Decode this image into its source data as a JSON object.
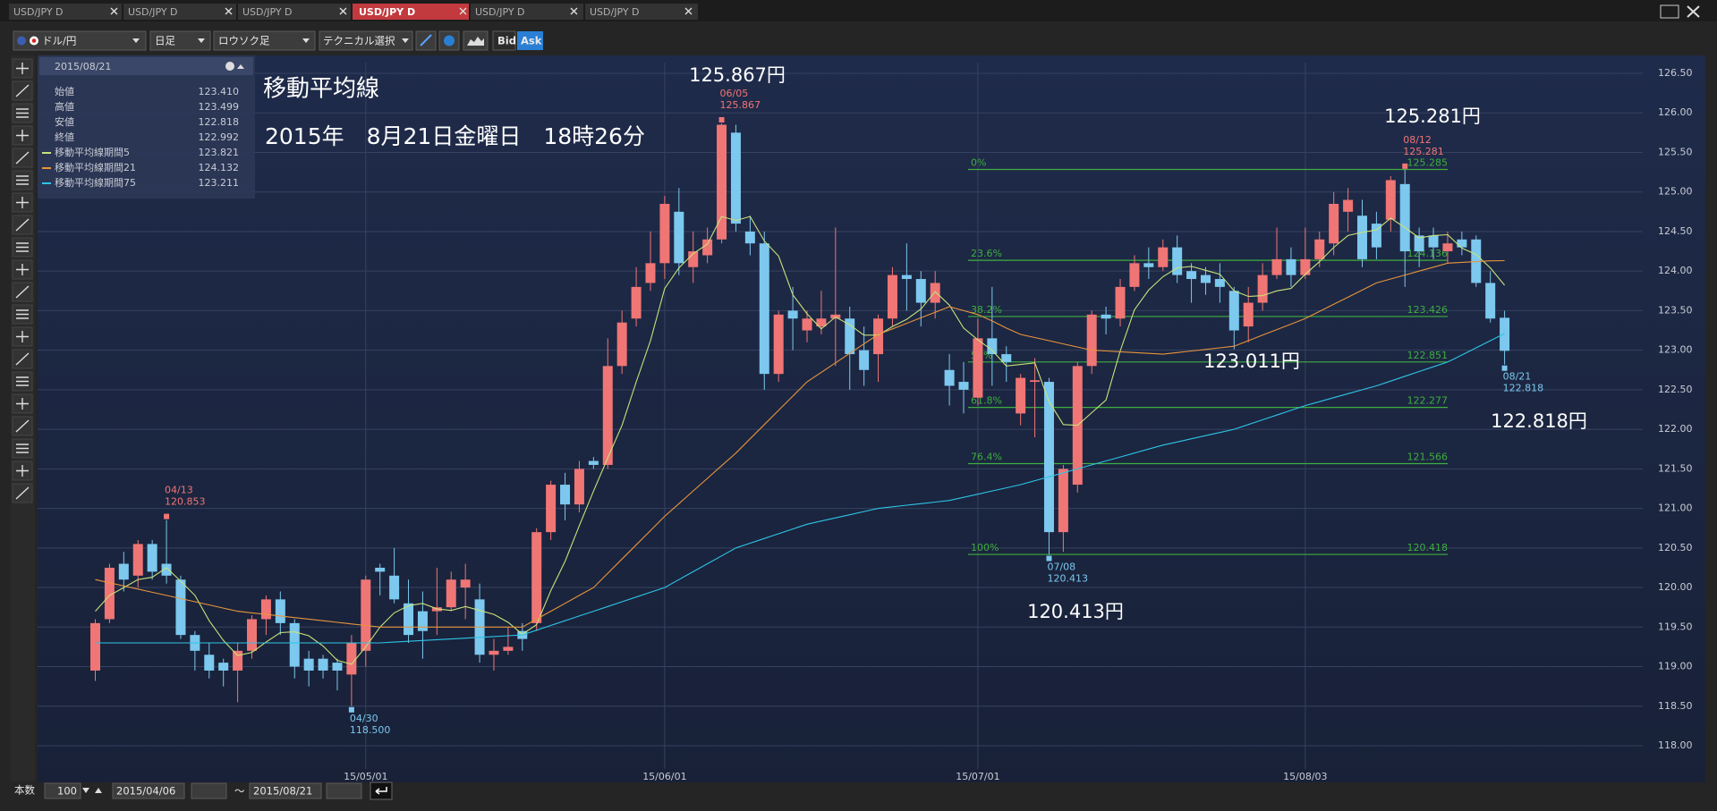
{
  "tabs": [
    "USD/JPY D",
    "USD/JPY D",
    "USD/JPY D",
    "USD/JPY D",
    "USD/JPY D",
    "USD/JPY D"
  ],
  "toolbar": {
    "pair": "ドル/円",
    "period": "日足",
    "chart_type": "ロウソク足",
    "technical": "テクニカル選択",
    "bid": "Bid",
    "ask": "Ask"
  },
  "info_panel": {
    "date": "2015/08/21",
    "ohlc_labels": [
      "始値",
      "高値",
      "安値",
      "終値"
    ],
    "ohlc_values": [
      "123.410",
      "123.499",
      "122.818",
      "122.992"
    ],
    "ma_values": [
      "123.821",
      "124.132",
      "123.211"
    ]
  },
  "annotations": {
    "title": "移動平均線",
    "datetime": "2015年　8月21日金曜日　18時26分",
    "price_labels": [
      "125.867円",
      "125.281円",
      "123.011円",
      "120.413円",
      "122.818円"
    ]
  },
  "bottom_bar": {
    "count_label": "本数",
    "count": "100",
    "from": "2015/04/06",
    "tilde": "〜",
    "to": "2015/08/21"
  },
  "chart_data": {
    "type": "candlestick",
    "categories": [
      null,
      null,
      null,
      null,
      null,
      null,
      null,
      null,
      null,
      null,
      null,
      null,
      null,
      null,
      null,
      null,
      null,
      null,
      null,
      "15/05/01",
      null,
      null,
      null,
      null,
      null,
      null,
      null,
      null,
      null,
      null,
      null,
      null,
      null,
      null,
      null,
      null,
      null,
      null,
      null,
      null,
      "15/06/01",
      null,
      null,
      null,
      null,
      null,
      null,
      null,
      null,
      null,
      null,
      null,
      null,
      null,
      null,
      null,
      null,
      null,
      null,
      null,
      null,
      null,
      "15/07/01",
      null,
      null,
      null,
      null,
      null,
      null,
      null,
      null,
      null,
      null,
      null,
      null,
      null,
      null,
      null,
      null,
      null,
      null,
      null,
      null,
      null,
      null,
      "15/08/03",
      null,
      null,
      null,
      null,
      null,
      null,
      null,
      null,
      null,
      null,
      null,
      null,
      null,
      null
    ],
    "open": [
      118.95,
      119.6,
      120.3,
      120.15,
      120.55,
      120.3,
      120.1,
      119.4,
      119.15,
      119.05,
      118.95,
      119.2,
      119.6,
      119.85,
      119.55,
      119.1,
      119.1,
      119.05,
      118.9,
      119.2,
      120.25,
      120.15,
      119.8,
      119.7,
      119.7,
      119.75,
      120.0,
      119.85,
      119.15,
      119.2,
      119.45,
      119.55,
      120.7,
      121.3,
      121.05,
      121.6,
      121.55,
      122.8,
      123.4,
      123.85,
      124.1,
      124.75,
      124.05,
      124.2,
      124.4,
      125.75,
      124.5,
      124.35,
      122.7,
      123.5,
      123.25,
      123.3,
      123.4,
      123.4,
      123.0,
      122.95,
      123.4,
      123.95,
      123.9,
      123.6,
      122.75,
      122.6,
      122.4,
      123.15,
      122.95,
      122.2,
      122.6,
      122.6,
      120.7,
      121.3,
      122.8,
      123.45,
      123.4,
      123.8,
      124.1,
      124.05,
      124.3,
      124.0,
      123.95,
      123.9,
      123.75,
      123.3,
      123.6,
      123.95,
      124.15,
      123.95,
      124.15,
      124.35,
      124.75,
      124.7,
      124.6,
      124.65,
      125.1,
      124.45,
      124.45,
      124.25,
      124.4,
      124.4,
      123.85,
      123.41
    ],
    "high": [
      119.6,
      120.3,
      120.45,
      120.6,
      120.6,
      120.853,
      120.15,
      119.45,
      119.3,
      119.1,
      119.3,
      119.65,
      119.9,
      119.95,
      119.6,
      119.2,
      119.15,
      119.1,
      119.4,
      120.15,
      120.3,
      120.5,
      120.1,
      119.95,
      120.25,
      120.2,
      120.3,
      120.05,
      119.35,
      119.5,
      119.55,
      120.75,
      121.35,
      121.45,
      121.6,
      121.65,
      123.15,
      123.5,
      124.05,
      124.5,
      124.95,
      125.05,
      124.5,
      124.55,
      125.867,
      125.85,
      124.7,
      124.5,
      123.5,
      123.8,
      123.5,
      123.75,
      124.55,
      123.55,
      123.3,
      123.45,
      124.05,
      124.35,
      124.0,
      124.0,
      122.95,
      122.85,
      123.4,
      123.8,
      123.05,
      122.7,
      122.9,
      122.65,
      121.55,
      122.85,
      123.5,
      123.55,
      123.9,
      124.2,
      124.3,
      124.4,
      124.45,
      124.1,
      124.05,
      124.1,
      123.8,
      123.8,
      124.1,
      124.55,
      124.3,
      124.55,
      124.5,
      125.0,
      125.05,
      124.9,
      124.75,
      125.2,
      125.281,
      124.55,
      124.55,
      124.5,
      124.5,
      124.45,
      124.0,
      123.499
    ],
    "low": [
      118.82,
      119.55,
      119.95,
      120.0,
      120.1,
      120.05,
      119.35,
      118.95,
      118.85,
      118.75,
      118.55,
      119.1,
      119.4,
      119.4,
      118.85,
      118.75,
      118.85,
      118.7,
      118.5,
      119.0,
      119.9,
      119.8,
      119.3,
      119.1,
      119.4,
      119.7,
      119.6,
      119.05,
      118.95,
      119.15,
      119.2,
      119.45,
      120.6,
      120.85,
      120.95,
      121.5,
      121.5,
      122.7,
      123.3,
      123.75,
      123.9,
      123.95,
      123.85,
      124.1,
      124.35,
      124.5,
      124.2,
      122.5,
      122.6,
      123.0,
      123.1,
      123.2,
      122.8,
      122.5,
      122.55,
      122.6,
      123.3,
      123.5,
      123.3,
      123.4,
      122.3,
      122.2,
      122.3,
      122.55,
      122.6,
      122.05,
      121.9,
      120.413,
      120.45,
      121.2,
      122.7,
      123.2,
      123.3,
      123.75,
      123.9,
      124.0,
      123.85,
      123.6,
      123.7,
      123.6,
      123.011,
      123.1,
      123.5,
      123.9,
      123.8,
      123.9,
      124.05,
      124.2,
      124.5,
      124.05,
      124.15,
      124.5,
      123.8,
      124.05,
      124.15,
      124.1,
      124.2,
      123.8,
      123.35,
      122.818
    ],
    "close": [
      119.55,
      120.25,
      120.1,
      120.55,
      120.2,
      120.15,
      119.4,
      119.2,
      118.95,
      118.95,
      119.2,
      119.6,
      119.85,
      119.55,
      119.0,
      118.95,
      118.95,
      118.95,
      119.3,
      120.1,
      120.2,
      119.85,
      119.4,
      119.45,
      119.75,
      120.1,
      120.1,
      119.15,
      119.2,
      119.25,
      119.35,
      120.7,
      121.3,
      121.05,
      121.5,
      121.55,
      122.8,
      123.35,
      123.8,
      124.1,
      124.85,
      124.1,
      124.25,
      124.4,
      125.85,
      124.6,
      124.35,
      122.7,
      123.45,
      123.4,
      123.4,
      123.4,
      123.45,
      122.95,
      122.75,
      123.4,
      123.95,
      123.9,
      123.6,
      123.85,
      122.55,
      122.5,
      123.15,
      122.95,
      122.85,
      122.65,
      122.62,
      120.7,
      121.5,
      122.8,
      123.45,
      123.4,
      123.8,
      124.1,
      124.05,
      124.3,
      123.95,
      123.9,
      123.85,
      123.8,
      123.25,
      123.6,
      123.95,
      124.15,
      123.95,
      124.15,
      124.4,
      124.85,
      124.9,
      124.15,
      124.3,
      125.15,
      124.25,
      124.25,
      124.3,
      124.35,
      124.3,
      123.85,
      123.4,
      122.992
    ],
    "up_color": "#f07575",
    "down_color": "#7cc8ee",
    "series": [
      {
        "name": "移動平均線期間5",
        "color": "#c9e27a",
        "values": [
          119.7,
          119.9,
          120.0,
          120.1,
          120.13,
          120.25,
          120.08,
          119.9,
          119.58,
          119.33,
          119.14,
          119.18,
          119.31,
          119.43,
          119.44,
          119.39,
          119.26,
          119.08,
          119.03,
          119.25,
          119.5,
          119.68,
          119.77,
          119.8,
          119.73,
          119.71,
          119.76,
          119.71,
          119.66,
          119.56,
          119.41,
          119.53,
          119.96,
          120.33,
          120.78,
          121.22,
          121.64,
          122.05,
          122.6,
          123.12,
          123.78,
          124.04,
          124.22,
          124.34,
          124.69,
          124.64,
          124.69,
          124.38,
          124.19,
          123.7,
          123.46,
          123.27,
          123.42,
          123.32,
          123.19,
          123.19,
          123.3,
          123.39,
          123.52,
          123.74,
          123.57,
          123.28,
          123.13,
          123.0,
          122.8,
          122.82,
          122.84,
          122.35,
          122.06,
          122.05,
          122.21,
          122.37,
          122.99,
          123.51,
          123.76,
          123.93,
          124.04,
          124.06,
          124.01,
          123.96,
          123.75,
          123.68,
          123.69,
          123.75,
          123.78,
          123.96,
          124.12,
          124.3,
          124.45,
          124.49,
          124.52,
          124.67,
          124.55,
          124.42,
          124.45,
          124.46,
          124.29,
          124.21,
          124.04,
          123.821
        ]
      },
      {
        "name": "移動平均線期間21",
        "color": "#e8953c",
        "values": [
          120.1,
          120.06,
          120.02,
          119.98,
          119.94,
          119.9,
          119.86,
          119.82,
          119.78,
          119.74,
          119.7,
          119.68,
          119.66,
          119.64,
          119.62,
          119.6,
          119.58,
          119.56,
          119.54,
          119.52,
          119.5,
          119.5,
          119.5,
          119.5,
          119.5,
          119.5,
          119.5,
          119.5,
          119.5,
          119.5,
          119.5,
          119.6,
          119.7,
          119.8,
          119.9,
          120.0,
          120.18,
          120.36,
          120.54,
          120.72,
          120.9,
          121.06,
          121.22,
          121.38,
          121.54,
          121.7,
          121.88,
          122.06,
          122.24,
          122.42,
          122.6,
          122.72,
          122.84,
          122.96,
          123.08,
          123.2,
          123.27,
          123.34,
          123.41,
          123.48,
          123.55,
          123.5,
          123.45,
          123.37,
          123.28,
          123.2,
          123.16,
          123.12,
          123.08,
          123.04,
          123.0,
          122.99,
          122.98,
          122.97,
          122.96,
          122.95,
          122.97,
          122.99,
          123.01,
          123.03,
          123.05,
          123.12,
          123.19,
          123.26,
          123.33,
          123.4,
          123.49,
          123.58,
          123.67,
          123.76,
          123.85,
          123.9,
          123.95,
          124.0,
          124.05,
          124.1,
          124.11,
          124.12,
          124.13,
          124.132
        ]
      },
      {
        "name": "移動平均線期間75",
        "color": "#2ec4e6",
        "values": [
          119.3,
          119.3,
          119.3,
          119.3,
          119.3,
          119.3,
          119.3,
          119.3,
          119.3,
          119.3,
          119.3,
          119.3,
          119.3,
          119.3,
          119.3,
          119.3,
          119.3,
          119.3,
          119.3,
          119.3,
          119.3,
          119.31,
          119.32,
          119.33,
          119.34,
          119.35,
          119.36,
          119.37,
          119.38,
          119.39,
          119.4,
          119.46,
          119.52,
          119.58,
          119.64,
          119.7,
          119.76,
          119.82,
          119.88,
          119.94,
          120.0,
          120.1,
          120.2,
          120.3,
          120.4,
          120.5,
          120.56,
          120.62,
          120.68,
          120.74,
          120.8,
          120.84,
          120.88,
          120.92,
          120.96,
          121.0,
          121.02,
          121.04,
          121.06,
          121.08,
          121.1,
          121.14,
          121.18,
          121.22,
          121.26,
          121.3,
          121.35,
          121.4,
          121.45,
          121.5,
          121.55,
          121.6,
          121.65,
          121.7,
          121.75,
          121.8,
          121.84,
          121.88,
          121.92,
          121.96,
          122.0,
          122.06,
          122.12,
          122.18,
          122.24,
          122.3,
          122.35,
          122.4,
          122.45,
          122.5,
          122.55,
          122.61,
          122.67,
          122.73,
          122.79,
          122.85,
          122.94,
          123.03,
          123.12,
          123.211
        ]
      }
    ],
    "markers": {
      "dates": [
        "04/13",
        "04/30",
        "06/05",
        "07/08",
        "08/12",
        "08/21"
      ],
      "values": [
        120.853,
        118.5,
        125.867,
        120.413,
        125.281,
        122.818
      ],
      "value_labels": [
        "120.853",
        "118.500",
        "125.867",
        "120.413",
        "125.281",
        "122.818"
      ]
    },
    "fib": {
      "color": "#3fae3f",
      "labels": [
        "0%",
        "23.6%",
        "38.2%",
        "50%",
        "61.8%",
        "76.4%",
        "100%"
      ],
      "values": [
        125.285,
        124.136,
        123.426,
        122.851,
        122.277,
        121.566,
        120.418
      ]
    },
    "ylim": [
      118,
      126.5
    ],
    "yticks": [
      {
        "value": 118,
        "label": "118.00"
      },
      {
        "value": 118.5,
        "label": "118.50"
      },
      {
        "value": 119,
        "label": "119.00"
      },
      {
        "value": 119.5,
        "label": "119.50"
      },
      {
        "value": 120,
        "label": "120.00"
      },
      {
        "value": 120.5,
        "label": "120.50"
      },
      {
        "value": 121,
        "label": "121.00"
      },
      {
        "value": 121.5,
        "label": "121.50"
      },
      {
        "value": 122,
        "label": "122.00"
      },
      {
        "value": 122.5,
        "label": "122.50"
      },
      {
        "value": 123,
        "label": "123.00"
      },
      {
        "value": 123.5,
        "label": "123.50"
      },
      {
        "value": 124,
        "label": "124.00"
      },
      {
        "value": 124.5,
        "label": "124.50"
      },
      {
        "value": 125,
        "label": "125.00"
      },
      {
        "value": 125.5,
        "label": "125.50"
      },
      {
        "value": 126,
        "label": "126.00"
      },
      {
        "value": 126.5,
        "label": "126.50"
      }
    ],
    "grid": true
  }
}
